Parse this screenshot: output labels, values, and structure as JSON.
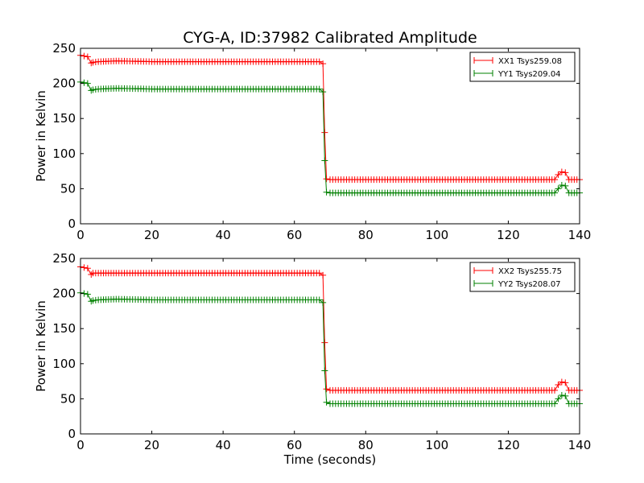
{
  "figure": {
    "title": "CYG-A, ID:37982 Calibrated Amplitude"
  },
  "chart_data": [
    {
      "type": "line",
      "title": "CYG-A, ID:37982 Calibrated Amplitude",
      "xlabel": "",
      "ylabel": "Power in Kelvin",
      "xlim": [
        0,
        140
      ],
      "ylim": [
        0,
        250
      ],
      "xticks": [
        0,
        20,
        40,
        60,
        80,
        100,
        120,
        140
      ],
      "yticks": [
        0,
        50,
        100,
        150,
        200,
        250
      ],
      "grid": false,
      "legend_position": "top-right",
      "marker": "+",
      "series": [
        {
          "name": "XX1 Tsys259.08",
          "color": "#ff0000",
          "x": [
            0,
            1,
            2,
            3,
            3.5,
            5,
            10,
            20,
            30,
            40,
            50,
            60,
            67,
            68,
            68.5,
            69,
            70,
            80,
            90,
            100,
            110,
            120,
            130,
            133,
            134,
            135,
            136,
            137,
            140
          ],
          "y": [
            240,
            239,
            238,
            229,
            230,
            231,
            232,
            231,
            231,
            231,
            231,
            231,
            231,
            228,
            130,
            64,
            63,
            63,
            63,
            63,
            63,
            63,
            63,
            63,
            70,
            74,
            73,
            63,
            63
          ]
        },
        {
          "name": "YY1 Tsys209.04",
          "color": "#008000",
          "x": [
            0,
            1,
            2,
            3,
            3.5,
            5,
            10,
            20,
            30,
            40,
            50,
            60,
            67,
            68,
            68.5,
            69,
            70,
            80,
            90,
            100,
            110,
            120,
            130,
            133,
            134,
            135,
            136,
            137,
            140
          ],
          "y": [
            202,
            201,
            200,
            190,
            191,
            192,
            193,
            192,
            192,
            192,
            192,
            192,
            192,
            188,
            90,
            45,
            44,
            44,
            44,
            44,
            44,
            44,
            44,
            44,
            50,
            55,
            54,
            44,
            44
          ]
        }
      ]
    },
    {
      "type": "line",
      "title": "",
      "xlabel": "Time (seconds)",
      "ylabel": "Power in Kelvin",
      "xlim": [
        0,
        140
      ],
      "ylim": [
        0,
        250
      ],
      "xticks": [
        0,
        20,
        40,
        60,
        80,
        100,
        120,
        140
      ],
      "yticks": [
        0,
        50,
        100,
        150,
        200,
        250
      ],
      "grid": false,
      "legend_position": "top-right",
      "marker": "+",
      "series": [
        {
          "name": "XX2 Tsys255.75",
          "color": "#ff0000",
          "x": [
            0,
            1,
            2,
            3,
            3.5,
            5,
            10,
            20,
            30,
            40,
            50,
            60,
            67,
            68,
            68.5,
            69,
            70,
            80,
            90,
            100,
            110,
            120,
            130,
            133,
            134,
            135,
            136,
            137,
            140
          ],
          "y": [
            238,
            237,
            236,
            227,
            229,
            229,
            229,
            229,
            229,
            229,
            229,
            229,
            229,
            226,
            130,
            64,
            62,
            62,
            62,
            62,
            62,
            62,
            62,
            62,
            70,
            74,
            73,
            62,
            62
          ]
        },
        {
          "name": "YY2 Tsys208.07",
          "color": "#008000",
          "x": [
            0,
            1,
            2,
            3,
            3.5,
            5,
            10,
            20,
            30,
            40,
            50,
            60,
            67,
            68,
            68.5,
            69,
            70,
            80,
            90,
            100,
            110,
            120,
            130,
            133,
            134,
            135,
            136,
            137,
            140
          ],
          "y": [
            201,
            200,
            199,
            189,
            190,
            191,
            192,
            191,
            191,
            191,
            191,
            191,
            191,
            187,
            90,
            45,
            43,
            43,
            43,
            43,
            43,
            43,
            43,
            43,
            50,
            55,
            54,
            43,
            43
          ]
        }
      ]
    }
  ]
}
